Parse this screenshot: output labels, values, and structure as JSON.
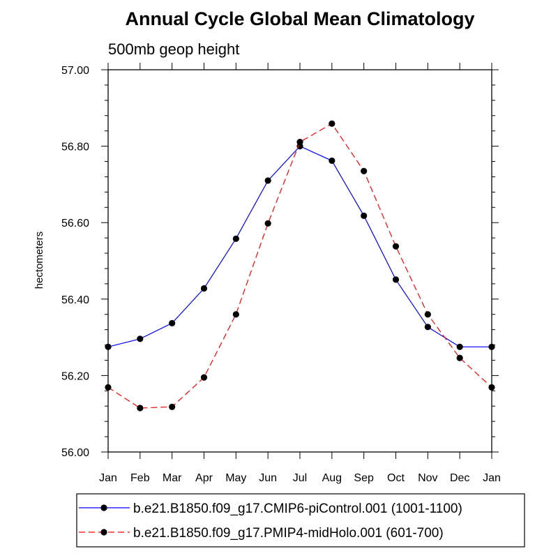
{
  "chart_data": {
    "type": "line",
    "title": "Annual Cycle Global Mean Climatology",
    "subtitle": "500mb geop height",
    "xlabel": "",
    "ylabel": "hectometers",
    "categories": [
      "Jan",
      "Feb",
      "Mar",
      "Apr",
      "May",
      "Jun",
      "Jul",
      "Aug",
      "Sep",
      "Oct",
      "Nov",
      "Dec",
      "Jan"
    ],
    "ylim": [
      56.0,
      57.0
    ],
    "yticks": [
      "56.00",
      "56.20",
      "56.40",
      "56.60",
      "56.80",
      "57.00"
    ],
    "grid": false,
    "legend_placement": "bottom",
    "series": [
      {
        "name": "b.e21.B1850.f09_g17.CMIP6-piControl.001 (1001-1100)",
        "color": "#0000ff",
        "dash": "solid",
        "values": [
          56.275,
          56.296,
          56.337,
          56.428,
          56.558,
          56.71,
          56.8,
          56.762,
          56.618,
          56.451,
          56.327,
          56.275,
          56.275
        ]
      },
      {
        "name": "b.e21.B1850.f09_g17.PMIP4-midHolo.001 (601-700)",
        "color": "#ff0000",
        "dash": "dashed",
        "values": [
          56.169,
          56.115,
          56.118,
          56.195,
          56.36,
          56.598,
          56.811,
          56.859,
          56.735,
          56.538,
          56.36,
          56.246,
          56.169
        ]
      }
    ]
  }
}
